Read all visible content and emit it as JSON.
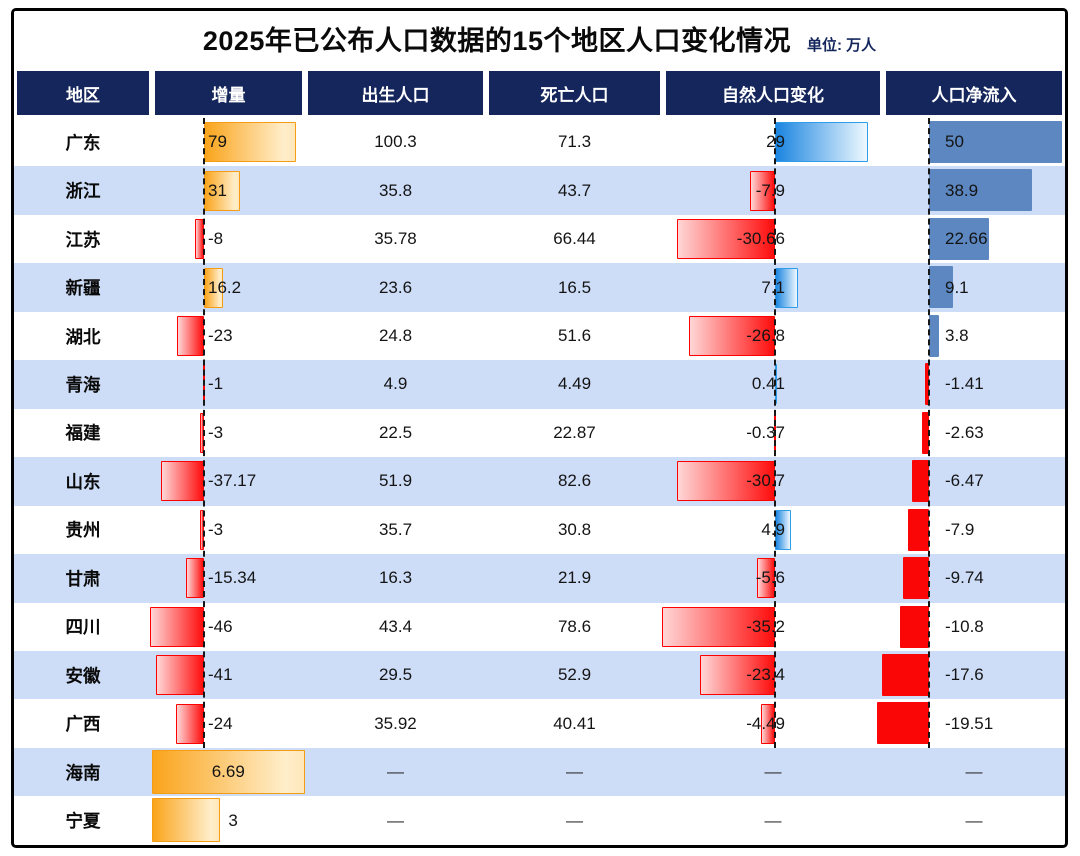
{
  "title": "2025年已公布人口数据的15个地区人口变化情况",
  "unit_label": "单位: 万人",
  "placeholder": "—",
  "columns": [
    {
      "key": "region",
      "label": "地区"
    },
    {
      "key": "delta",
      "label": "增量"
    },
    {
      "key": "births",
      "label": "出生人口"
    },
    {
      "key": "deaths",
      "label": "死亡人口"
    },
    {
      "key": "natural",
      "label": "自然人口变化"
    },
    {
      "key": "netflow",
      "label": "人口净流入"
    }
  ],
  "colors": {
    "header_bg": "#14265c",
    "row_alt": "#cddcf7",
    "row_base": "#ffffff",
    "delta_pos_bar": [
      "#faa41b",
      "#ffe7ba"
    ],
    "neg_gradient_bar": [
      "#ffd6d6",
      "#ff0d0d"
    ],
    "natural_pos_bar": [
      "#1b85e0",
      "#eef8ff"
    ],
    "netflow_pos_bar": "#5c87c1",
    "netflow_neg_bar": "#fb0606",
    "orange_border": "#f59c15",
    "red_border": "#fe0000",
    "blue_border": "#2e9ce9",
    "frame_border": "#000000",
    "unit_text": "#14265c"
  },
  "rows": [
    {
      "region": "广东",
      "delta": 79,
      "births": 100.3,
      "deaths": 71.3,
      "natural": 29,
      "netflow": 50,
      "delta_from_left": false
    },
    {
      "region": "浙江",
      "delta": 31,
      "births": 35.8,
      "deaths": 43.7,
      "natural": -7.9,
      "netflow": 38.9,
      "delta_from_left": false
    },
    {
      "region": "江苏",
      "delta": -8,
      "births": 35.78,
      "deaths": 66.44,
      "natural": -30.66,
      "netflow": 22.66,
      "delta_from_left": false
    },
    {
      "region": "新疆",
      "delta": 16.2,
      "births": 23.6,
      "deaths": 16.5,
      "natural": 7.1,
      "netflow": 9.1,
      "delta_from_left": false
    },
    {
      "region": "湖北",
      "delta": -23,
      "births": 24.8,
      "deaths": 51.6,
      "natural": -26.8,
      "netflow": 3.8,
      "delta_from_left": false
    },
    {
      "region": "青海",
      "delta": -1,
      "births": 4.9,
      "deaths": 4.49,
      "natural": 0.41,
      "netflow": -1.41,
      "delta_from_left": false
    },
    {
      "region": "福建",
      "delta": -3,
      "births": 22.5,
      "deaths": 22.87,
      "natural": -0.37,
      "netflow": -2.63,
      "delta_from_left": false
    },
    {
      "region": "山东",
      "delta": -37.17,
      "births": 51.9,
      "deaths": 82.6,
      "natural": -30.7,
      "netflow": -6.47,
      "delta_from_left": false
    },
    {
      "region": "贵州",
      "delta": -3,
      "births": 35.7,
      "deaths": 30.8,
      "natural": 4.9,
      "netflow": -7.9,
      "delta_from_left": false
    },
    {
      "region": "甘肃",
      "delta": -15.34,
      "births": 16.3,
      "deaths": 21.9,
      "natural": -5.6,
      "netflow": -9.74,
      "delta_from_left": false
    },
    {
      "region": "四川",
      "delta": -46,
      "births": 43.4,
      "deaths": 78.6,
      "natural": -35.2,
      "netflow": -10.8,
      "delta_from_left": false
    },
    {
      "region": "安徽",
      "delta": -41,
      "births": 29.5,
      "deaths": 52.9,
      "natural": -23.4,
      "netflow": -17.6,
      "delta_from_left": false
    },
    {
      "region": "广西",
      "delta": -24,
      "births": 35.92,
      "deaths": 40.41,
      "natural": -4.49,
      "netflow": -19.51,
      "delta_from_left": false
    },
    {
      "region": "海南",
      "delta": 6.69,
      "births": null,
      "deaths": null,
      "natural": null,
      "netflow": null,
      "delta_from_left": true
    },
    {
      "region": "宁夏",
      "delta": 3,
      "births": null,
      "deaths": null,
      "natural": null,
      "netflow": null,
      "delta_from_left": true
    }
  ],
  "chart_data": {
    "type": "bar",
    "title": "2025年已公布人口数据的15个地区人口变化情况",
    "unit": "万人",
    "legend_position": "none",
    "grid": false,
    "categories": [
      "广东",
      "浙江",
      "江苏",
      "新疆",
      "湖北",
      "青海",
      "福建",
      "山东",
      "贵州",
      "甘肃",
      "四川",
      "安徽",
      "广西",
      "海南",
      "宁夏"
    ],
    "series": [
      {
        "name": "增量",
        "values": [
          79,
          31,
          -8,
          16.2,
          -23,
          -1,
          -3,
          -37.17,
          -3,
          -15.34,
          -46,
          -41,
          -24,
          6.69,
          3
        ]
      },
      {
        "name": "出生人口",
        "values": [
          100.3,
          35.8,
          35.78,
          23.6,
          24.8,
          4.9,
          22.5,
          51.9,
          35.7,
          16.3,
          43.4,
          29.5,
          35.92,
          null,
          null
        ]
      },
      {
        "name": "死亡人口",
        "values": [
          71.3,
          43.7,
          66.44,
          16.5,
          51.6,
          4.49,
          22.87,
          82.6,
          30.8,
          21.9,
          78.6,
          52.9,
          40.41,
          null,
          null
        ]
      },
      {
        "name": "自然人口变化",
        "values": [
          29,
          -7.9,
          -30.66,
          7.1,
          -26.8,
          0.41,
          -0.37,
          -30.7,
          4.9,
          -5.6,
          -35.2,
          -23.4,
          -4.49,
          null,
          null
        ]
      },
      {
        "name": "人口净流入",
        "values": [
          50,
          38.9,
          22.66,
          9.1,
          3.8,
          -1.41,
          -2.63,
          -6.47,
          -7.9,
          -9.74,
          -10.8,
          -17.6,
          -19.51,
          null,
          null
        ]
      }
    ]
  }
}
